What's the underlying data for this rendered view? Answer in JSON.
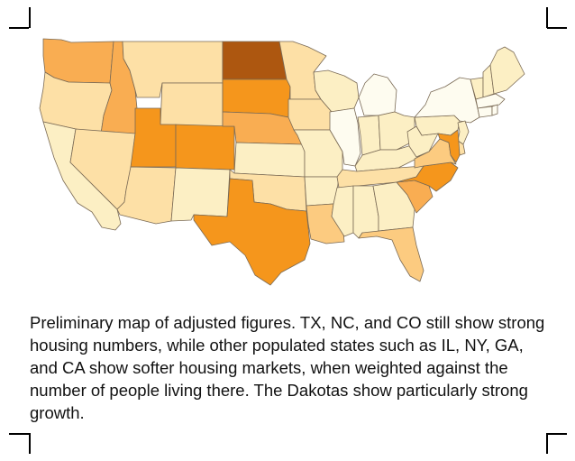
{
  "caption": "Preliminary map of adjusted figures.  TX, NC, and CO still show strong housing numbers, while other populated states such as IL, NY, GA, and CA show softer housing markets, when weighted against the number of people living there.  The Dakotas show particularly strong growth.",
  "colors": {
    "stroke": "#7a6a55",
    "lightest": "#fefcf0",
    "light": "#fcefc4",
    "mid_light": "#fde0a6",
    "mid": "#fccb80",
    "mid_strong": "#f9ad52",
    "strong": "#f5961c",
    "strongest": "#ad5710"
  },
  "states": [
    {
      "id": "WA",
      "color": "#f9ad52"
    },
    {
      "id": "OR",
      "color": "#fde0a6"
    },
    {
      "id": "CA",
      "color": "#fcefc4"
    },
    {
      "id": "ID",
      "color": "#f9ad52"
    },
    {
      "id": "NV",
      "color": "#fde0a6"
    },
    {
      "id": "MT",
      "color": "#fde0a6"
    },
    {
      "id": "WY",
      "color": "#fde0a6"
    },
    {
      "id": "UT",
      "color": "#f5961c"
    },
    {
      "id": "CO",
      "color": "#f5961c"
    },
    {
      "id": "AZ",
      "color": "#fde0a6"
    },
    {
      "id": "NM",
      "color": "#fcefc4"
    },
    {
      "id": "ND",
      "color": "#ad5710"
    },
    {
      "id": "SD",
      "color": "#f5961c"
    },
    {
      "id": "NE",
      "color": "#f9ad52"
    },
    {
      "id": "KS",
      "color": "#fcefc4"
    },
    {
      "id": "OK",
      "color": "#fde0a6"
    },
    {
      "id": "TX",
      "color": "#f5961c"
    },
    {
      "id": "MN",
      "color": "#fde0a6"
    },
    {
      "id": "IA",
      "color": "#fde0a6"
    },
    {
      "id": "MO",
      "color": "#fcefc4"
    },
    {
      "id": "AR",
      "color": "#fcefc4"
    },
    {
      "id": "LA",
      "color": "#fccb80"
    },
    {
      "id": "WI",
      "color": "#fcefc4"
    },
    {
      "id": "IL",
      "color": "#fefcf0"
    },
    {
      "id": "MI",
      "color": "#fefcf0"
    },
    {
      "id": "IN",
      "color": "#fcefc4"
    },
    {
      "id": "OH",
      "color": "#fcefc4"
    },
    {
      "id": "KY",
      "color": "#fcefc4"
    },
    {
      "id": "TN",
      "color": "#fde0a6"
    },
    {
      "id": "MS",
      "color": "#fcefc4"
    },
    {
      "id": "AL",
      "color": "#fcefc4"
    },
    {
      "id": "GA",
      "color": "#fcefc4"
    },
    {
      "id": "FL",
      "color": "#fccb80"
    },
    {
      "id": "SC",
      "color": "#f9ad52"
    },
    {
      "id": "NC",
      "color": "#f5961c"
    },
    {
      "id": "VA",
      "color": "#fccb80"
    },
    {
      "id": "WV",
      "color": "#fcefc4"
    },
    {
      "id": "PA",
      "color": "#fcefc4"
    },
    {
      "id": "NY",
      "color": "#fefcf0"
    },
    {
      "id": "VT",
      "color": "#fcefc4"
    },
    {
      "id": "NH",
      "color": "#fcefc4"
    },
    {
      "id": "ME",
      "color": "#fcefc4"
    },
    {
      "id": "MA",
      "color": "#fefcf0"
    },
    {
      "id": "CT",
      "color": "#fefcf0"
    },
    {
      "id": "RI",
      "color": "#fefcf0"
    },
    {
      "id": "NJ",
      "color": "#fcefc4"
    },
    {
      "id": "DE",
      "color": "#fde0a6"
    },
    {
      "id": "MD",
      "color": "#f5961c"
    }
  ]
}
